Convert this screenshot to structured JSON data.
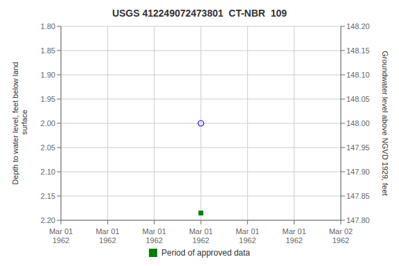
{
  "chart_data": {
    "type": "scatter",
    "title": "USGS 412249072473801  CT-NBR  109",
    "ylabel": "Depth to water level, feet below land\n surface",
    "y2label": "Groundwater level above NGVD 1929, feet",
    "categories": [
      "Mar 01\n1962",
      "Mar 01\n1962",
      "Mar 01\n1962",
      "Mar 01\n1962",
      "Mar 01\n1962",
      "Mar 01\n1962",
      "Mar 02\n1962"
    ],
    "series": [
      {
        "color": "blue",
        "marker": "circle",
        "values": [
          null,
          null,
          null,
          2.0,
          null,
          null,
          null
        ]
      },
      {
        "name": "Period of approved data",
        "color": "#008000",
        "marker": "square",
        "values": [
          null,
          null,
          null,
          2.185,
          null,
          null,
          null
        ]
      }
    ],
    "ylim": [
      2.2,
      1.8
    ],
    "yticks": [
      {
        "value": 1.8,
        "label": "1.80"
      },
      {
        "value": 1.85,
        "label": "1.85"
      },
      {
        "value": 1.9,
        "label": "1.90"
      },
      {
        "value": 1.95,
        "label": "1.95"
      },
      {
        "value": 2,
        "label": "2.00"
      },
      {
        "value": 2.05,
        "label": "2.05"
      },
      {
        "value": 2.1,
        "label": "2.10"
      },
      {
        "value": 2.15,
        "label": "2.15"
      },
      {
        "value": 2.2,
        "label": "2.20"
      }
    ],
    "y2lim": [
      147.8,
      148.2
    ],
    "y2ticks": [
      {
        "value": 148.2,
        "label": "148.20"
      },
      {
        "value": 148.15,
        "label": "148.15"
      },
      {
        "value": 148.1,
        "label": "148.10"
      },
      {
        "value": 148.05,
        "label": "148.05"
      },
      {
        "value": 148,
        "label": "148.00"
      },
      {
        "value": 147.95,
        "label": "147.95"
      },
      {
        "value": 147.9,
        "label": "147.90"
      },
      {
        "value": 147.85,
        "label": "147.85"
      },
      {
        "value": 147.8,
        "label": "147.80"
      }
    ],
    "grid": true,
    "legend": "bottom"
  }
}
